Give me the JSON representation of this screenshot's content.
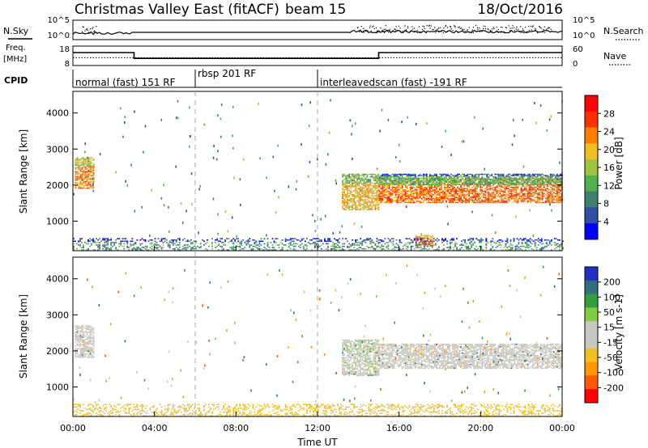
{
  "header": {
    "title": "Christmas Valley East (fitACF)",
    "beam": "beam 15",
    "date": "18/Oct/2016"
  },
  "noise_panel": {
    "left_label": "N.Sky",
    "right_label": "N.Search",
    "left_ticks": [
      "10^5",
      "10^0"
    ],
    "right_ticks": [
      "10^5",
      "10^0"
    ]
  },
  "freq_panel": {
    "left_label_line1": "Freq.",
    "left_label_line2": "[MHz]",
    "right_label": "Nave",
    "left_ticks": [
      "18",
      "8"
    ],
    "right_ticks": [
      "60",
      "0"
    ],
    "freq_series": [
      {
        "t": 0,
        "v": 14
      },
      {
        "t": 3,
        "v": 14
      },
      {
        "t": 3,
        "v": 10.4
      },
      {
        "t": 15,
        "v": 10.4
      },
      {
        "t": 15,
        "v": 14
      },
      {
        "t": 24,
        "v": 14
      }
    ],
    "nave_level": 24
  },
  "cpid": {
    "label": "CPID",
    "segments": [
      {
        "text": "normal (fast) 151 RF",
        "start": 0,
        "end": 6
      },
      {
        "text": "rbsp 201 RF",
        "start": 6,
        "end": 12
      },
      {
        "text": "interleavedscan (fast) -191 RF",
        "start": 12,
        "end": 24
      }
    ]
  },
  "x_axis": {
    "label": "Time UT",
    "ticks": [
      "00:00",
      "04:00",
      "08:00",
      "12:00",
      "16:00",
      "20:00",
      "00:00"
    ],
    "range_hours": [
      0,
      24
    ],
    "dashed_markers_hours": [
      6,
      12
    ]
  },
  "panels": {
    "power": {
      "ylabel": "Slant Range [km]",
      "yticks": [
        "1000",
        "2000",
        "3000",
        "4000"
      ],
      "colorbar_label": "Power [dB]",
      "colorbar_ticks": [
        "4",
        "8",
        "12",
        "16",
        "20",
        "24",
        "28"
      ]
    },
    "velocity": {
      "ylabel": "Slant Range [km]",
      "yticks": [
        "1000",
        "2000",
        "3000",
        "4000"
      ],
      "colorbar_label": "Velocity [m s-1]",
      "colorbar_ticks": [
        "200",
        "100",
        "50",
        "15",
        "-15",
        "-50",
        "-100",
        "-200"
      ]
    }
  },
  "chart_data": [
    {
      "type": "heatmap",
      "title": "Power",
      "x_unit": "hours UT",
      "y_unit": "km",
      "xlim": [
        0,
        24
      ],
      "ylim": [
        180,
        4600
      ],
      "colorbar_range": [
        0,
        32
      ],
      "colorbar_colors": [
        "#0000ff",
        "#2f4fa8",
        "#3f7f6f",
        "#4fb04f",
        "#9fc43f",
        "#f0c020",
        "#ff8000",
        "#ff3000",
        "#ff0000"
      ],
      "regions": [
        {
          "t0": 0.1,
          "t1": 1.0,
          "r0": 1900,
          "r1": 2750,
          "level": 22
        },
        {
          "t0": 13.2,
          "t1": 15.0,
          "r0": 1300,
          "r1": 2300,
          "level": 20
        },
        {
          "t0": 15.0,
          "t1": 24.0,
          "r0": 1500,
          "r1": 2200,
          "level": 24
        },
        {
          "t0": 15.0,
          "t1": 24.0,
          "r0": 2000,
          "r1": 2300,
          "level": 12
        },
        {
          "t0": 16.8,
          "t1": 17.6,
          "r0": 300,
          "r1": 600,
          "level": 24
        },
        {
          "t0": 0.0,
          "t1": 24.0,
          "r0": 180,
          "r1": 500,
          "level": 10
        }
      ]
    },
    {
      "type": "heatmap",
      "title": "Velocity",
      "x_unit": "hours UT",
      "y_unit": "km",
      "xlim": [
        0,
        24
      ],
      "ylim": [
        180,
        4600
      ],
      "colorbar_range": [
        -250,
        250
      ],
      "colorbar_colors": [
        "#ff0000",
        "#ff5a00",
        "#ff9a00",
        "#f0c020",
        "#c8c8c0",
        "#c8c8c0",
        "#7fcf40",
        "#30a040",
        "#2f6f7f",
        "#2030c0"
      ],
      "regions": [
        {
          "t0": 0.1,
          "t1": 1.0,
          "r0": 1800,
          "r1": 2700,
          "value": 0
        },
        {
          "t0": 13.2,
          "t1": 15.0,
          "r0": 1300,
          "r1": 2300,
          "value": 40
        },
        {
          "t0": 15.0,
          "t1": 24.0,
          "r0": 1500,
          "r1": 2200,
          "value": 0
        },
        {
          "t0": 0.0,
          "t1": 24.0,
          "r0": 180,
          "r1": 500,
          "value": -60
        }
      ]
    }
  ]
}
